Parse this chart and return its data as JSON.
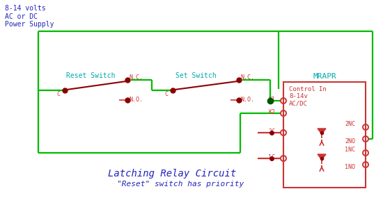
{
  "bg_color": "#ffffff",
  "green": "#00bb00",
  "red": "#cc3333",
  "dark_red": "#8B0000",
  "cyan": "#00aaaa",
  "blue": "#2222bb",
  "dot_green": "#005500",
  "title_line1": "Latching Relay Circuit",
  "title_line2": "\"Reset\" switch has priority",
  "power_label": "8-14 volts\nAC or DC\nPower Supply",
  "reset_label": "Reset Switch",
  "set_label": "Set Switch",
  "mrapr_label": "MRAPR",
  "control_label": "Control In\n8-14v\nAC/DC"
}
